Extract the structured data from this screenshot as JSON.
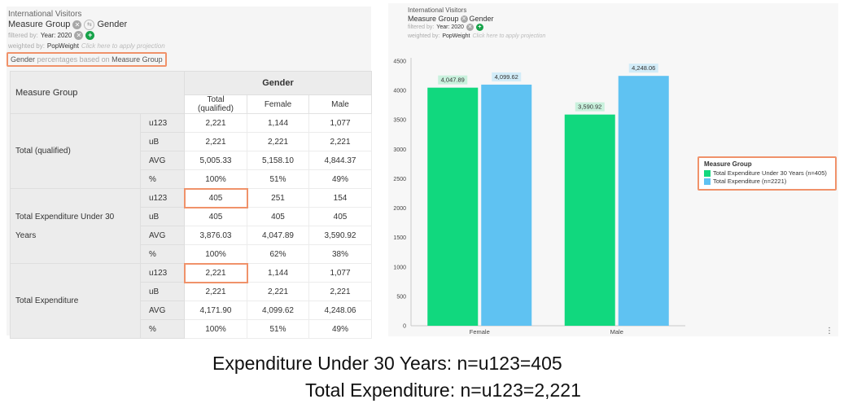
{
  "left": {
    "title": "International Visitors",
    "measure_group_label": "Measure Group",
    "gender_label": "Gender",
    "filtered_by_label": "filtered by:",
    "filter_value": "Year: 2020",
    "weighted_by_label": "weighted by:",
    "weight_value": "PopWeight",
    "projection_hint": "Click here to apply projection",
    "pct_note_a": "Gender",
    "pct_note_b": "percentages based on",
    "pct_note_c": "Measure Group",
    "table": {
      "corner_label": "Measure Group",
      "group_header": "Gender",
      "columns": [
        "Total (qualified)",
        "Female",
        "Male"
      ],
      "groups": [
        {
          "label": "Total (qualified)",
          "rows": [
            {
              "stat": "u123",
              "values": [
                "2,221",
                "1,144",
                "1,077"
              ]
            },
            {
              "stat": "uB",
              "values": [
                "2,221",
                "2,221",
                "2,221"
              ]
            },
            {
              "stat": "AVG",
              "values": [
                "5,005.33",
                "5,158.10",
                "4,844.37"
              ]
            },
            {
              "stat": "%",
              "values": [
                "100%",
                "51%",
                "49%"
              ]
            }
          ]
        },
        {
          "label": "Total Expenditure Under 30 Years",
          "rows": [
            {
              "stat": "u123",
              "values": [
                "405",
                "251",
                "154"
              ]
            },
            {
              "stat": "uB",
              "values": [
                "405",
                "405",
                "405"
              ]
            },
            {
              "stat": "AVG",
              "values": [
                "3,876.03",
                "4,047.89",
                "3,590.92"
              ]
            },
            {
              "stat": "%",
              "values": [
                "100%",
                "62%",
                "38%"
              ]
            }
          ]
        },
        {
          "label": "Total Expenditure",
          "rows": [
            {
              "stat": "u123",
              "values": [
                "2,221",
                "1,144",
                "1,077"
              ]
            },
            {
              "stat": "uB",
              "values": [
                "2,221",
                "2,221",
                "2,221"
              ]
            },
            {
              "stat": "AVG",
              "values": [
                "4,171.90",
                "4,099.62",
                "4,248.06"
              ]
            },
            {
              "stat": "%",
              "values": [
                "100%",
                "51%",
                "49%"
              ]
            }
          ]
        }
      ]
    }
  },
  "right": {
    "title": "International Visitors",
    "measure_group_label": "Measure Group",
    "gender_label": "Gender",
    "filtered_by_label": "filtered by:",
    "filter_value": "Year: 2020",
    "weighted_by_label": "weighted by:",
    "weight_value": "PopWeight",
    "projection_hint": "Click here to apply projection"
  },
  "chart_data": {
    "type": "bar",
    "categories": [
      "Female",
      "Male"
    ],
    "series": [
      {
        "name": "Total Expenditure Under 30 Years (n=405)",
        "values": [
          4047.89,
          3590.92
        ],
        "labels": [
          "4,047.89",
          "3,590.92"
        ],
        "color": "#11d87e"
      },
      {
        "name": "Total Expenditure (n=2221)",
        "values": [
          4099.62,
          4248.06
        ],
        "labels": [
          "4,099.62",
          "4,248.06"
        ],
        "color": "#5fc2f2"
      }
    ],
    "ylim": [
      0,
      4500
    ],
    "yticks": [
      "0",
      "500",
      "1000",
      "1500",
      "2000",
      "2500",
      "3000",
      "3500",
      "4000",
      "4500"
    ],
    "legend_title": "Measure Group",
    "legend_position": "right",
    "grid": false
  },
  "captions": {
    "line1": "Expenditure Under 30 Years: n=u123=405",
    "line2": "Total Expenditure: n=u123=2,221"
  },
  "colors": {
    "highlight": "#f0926a",
    "series_under30": "#11d87e",
    "series_total": "#5fc2f2",
    "label_bg_under30": "#c9f1dd",
    "label_bg_total": "#d2ecf8",
    "add_filter": "#17a34a"
  },
  "icons": [
    "remove-measure-icon",
    "swap-icon",
    "remove-filter-icon",
    "add-filter-icon",
    "more-options-icon"
  ]
}
